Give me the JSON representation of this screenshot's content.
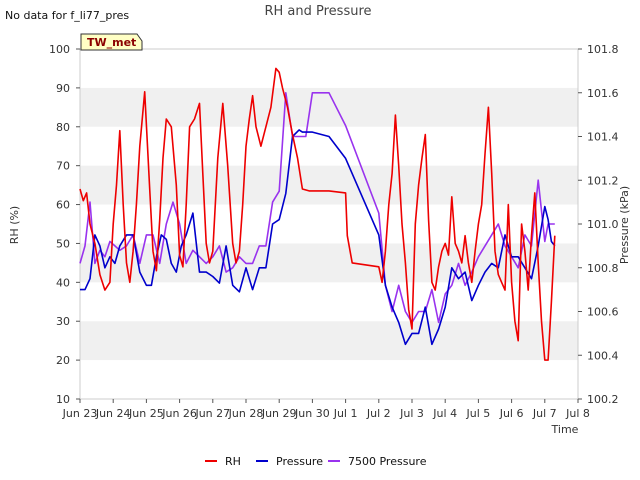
{
  "chart_data": {
    "type": "line",
    "title": "RH and Pressure",
    "note": "No data for f_li77_pres",
    "badge": "TW_met",
    "xlabel": "Time",
    "ylabel_left": "RH (%)",
    "ylabel_right": "Pressure (kPa)",
    "x_ticks": [
      "Jun 23",
      "Jun 24",
      "Jun 25",
      "Jun 26",
      "Jun 27",
      "Jun 28",
      "Jun 29",
      "Jun 30",
      "Jul 1",
      "Jul 2",
      "Jul 3",
      "Jul 4",
      "Jul 5",
      "Jul 6",
      "Jul 7",
      "Jul 8"
    ],
    "xlim": [
      0,
      15
    ],
    "ylim_left": [
      10,
      100
    ],
    "yticks_left": [
      "10",
      "20",
      "30",
      "40",
      "50",
      "60",
      "70",
      "80",
      "90",
      "100"
    ],
    "ylim_right": [
      100.2,
      101.8
    ],
    "yticks_right": [
      "100.2",
      "100.4",
      "100.6",
      "100.8",
      "101.0",
      "101.2",
      "101.4",
      "101.6",
      "101.8"
    ],
    "grid": "horizontal bands",
    "legend_position": "bottom",
    "colors": {
      "RH": "#ee0000",
      "Pressure": "#0000cc",
      "7500 Pressure": "#9933ee",
      "band": "#f0f0f0"
    },
    "series": [
      {
        "name": "RH",
        "axis": "left",
        "x": [
          0.0,
          0.1,
          0.2,
          0.3,
          0.45,
          0.6,
          0.75,
          0.9,
          1.0,
          1.1,
          1.2,
          1.3,
          1.4,
          1.5,
          1.6,
          1.7,
          1.8,
          1.95,
          2.1,
          2.2,
          2.3,
          2.4,
          2.5,
          2.6,
          2.75,
          2.9,
          3.0,
          3.1,
          3.2,
          3.3,
          3.45,
          3.6,
          3.7,
          3.8,
          3.9,
          4.0,
          4.15,
          4.3,
          4.45,
          4.6,
          4.7,
          4.8,
          4.9,
          5.0,
          5.1,
          5.2,
          5.3,
          5.45,
          5.6,
          5.75,
          5.9,
          6.0,
          6.1,
          6.25,
          6.4,
          6.55,
          6.7,
          6.9,
          7.0,
          7.5,
          8.0,
          8.05,
          8.2,
          9.0,
          9.1,
          9.2,
          9.3,
          9.4,
          9.5,
          9.6,
          9.7,
          9.8,
          9.9,
          10.0,
          10.1,
          10.2,
          10.3,
          10.4,
          10.5,
          10.6,
          10.7,
          10.8,
          10.9,
          11.0,
          11.1,
          11.2,
          11.3,
          11.4,
          11.5,
          11.6,
          11.7,
          11.8,
          11.9,
          12.0,
          12.1,
          12.2,
          12.3,
          12.4,
          12.5,
          12.6,
          12.7,
          12.8,
          12.9,
          13.0,
          13.1,
          13.2,
          13.3,
          13.4,
          13.5,
          13.6,
          13.7,
          13.8,
          13.9,
          14.0,
          14.1,
          14.2,
          14.3
        ],
        "y": [
          64,
          61,
          63,
          55,
          50,
          42,
          38,
          40,
          55,
          65,
          79,
          60,
          45,
          40,
          48,
          60,
          75,
          89,
          64,
          48,
          43,
          56,
          72,
          82,
          80,
          65,
          47,
          44,
          60,
          80,
          82,
          86,
          68,
          50,
          45,
          48,
          72,
          86,
          70,
          50,
          45,
          48,
          60,
          75,
          82,
          88,
          80,
          75,
          80,
          85,
          95,
          94,
          90,
          85,
          78,
          72,
          64,
          63.5,
          63.5,
          63.5,
          63,
          52,
          45,
          44,
          40,
          48,
          60,
          68,
          83,
          70,
          55,
          45,
          33,
          28,
          55,
          65,
          72,
          78,
          56,
          40,
          38,
          44,
          48,
          50,
          47,
          62,
          50,
          48,
          45,
          52,
          45,
          40,
          48,
          55,
          60,
          73,
          85,
          68,
          48,
          42,
          40,
          38,
          60,
          40,
          30,
          25,
          55,
          48,
          38,
          52,
          63,
          45,
          30,
          20,
          20,
          35,
          52
        ]
      },
      {
        "name": "Pressure",
        "axis": "right",
        "x": [
          0.0,
          0.15,
          0.3,
          0.45,
          0.6,
          0.75,
          0.9,
          1.05,
          1.2,
          1.4,
          1.6,
          1.8,
          2.0,
          2.15,
          2.3,
          2.45,
          2.6,
          2.75,
          2.9,
          3.05,
          3.2,
          3.4,
          3.6,
          3.8,
          4.0,
          4.2,
          4.4,
          4.6,
          4.8,
          5.0,
          5.2,
          5.4,
          5.6,
          5.8,
          6.0,
          6.2,
          6.4,
          6.6,
          6.7,
          6.85,
          7.0,
          7.5,
          8.0,
          9.0,
          9.2,
          9.4,
          9.6,
          9.8,
          10.0,
          10.2,
          10.4,
          10.6,
          10.8,
          11.0,
          11.2,
          11.4,
          11.6,
          11.8,
          12.0,
          12.2,
          12.4,
          12.6,
          12.8,
          13.0,
          13.2,
          13.4,
          13.6,
          13.8,
          14.0,
          14.1,
          14.2,
          14.3
        ],
        "y": [
          100.7,
          100.7,
          100.75,
          100.95,
          100.9,
          100.8,
          100.85,
          100.82,
          100.9,
          100.95,
          100.95,
          100.78,
          100.72,
          100.72,
          100.85,
          100.95,
          100.93,
          100.82,
          100.78,
          100.9,
          100.95,
          101.05,
          100.78,
          100.78,
          100.76,
          100.73,
          100.9,
          100.72,
          100.69,
          100.8,
          100.7,
          100.8,
          100.8,
          101.0,
          101.02,
          101.14,
          101.4,
          101.43,
          101.42,
          101.42,
          101.42,
          101.4,
          101.3,
          100.95,
          100.72,
          100.62,
          100.55,
          100.45,
          100.5,
          100.5,
          100.62,
          100.45,
          100.52,
          100.62,
          100.8,
          100.75,
          100.78,
          100.65,
          100.72,
          100.78,
          100.82,
          100.8,
          100.95,
          100.85,
          100.85,
          100.8,
          100.75,
          100.9,
          101.08,
          101.02,
          100.92,
          100.9
        ]
      },
      {
        "name": "7500 Pressure",
        "axis": "right",
        "x": [
          0.0,
          0.15,
          0.3,
          0.45,
          0.6,
          0.75,
          0.9,
          1.05,
          1.2,
          1.4,
          1.6,
          1.8,
          2.0,
          2.2,
          2.4,
          2.6,
          2.8,
          3.0,
          3.2,
          3.4,
          3.6,
          3.8,
          4.0,
          4.2,
          4.4,
          4.6,
          4.8,
          5.0,
          5.2,
          5.4,
          5.6,
          5.8,
          6.0,
          6.2,
          6.4,
          6.6,
          6.8,
          7.0,
          7.5,
          8.0,
          9.0,
          9.2,
          9.4,
          9.6,
          9.8,
          10.0,
          10.2,
          10.4,
          10.6,
          10.8,
          11.0,
          11.2,
          11.4,
          11.6,
          11.8,
          12.0,
          12.2,
          12.4,
          12.6,
          12.8,
          13.0,
          13.2,
          13.4,
          13.6,
          13.8,
          14.0,
          14.1,
          14.2,
          14.3
        ],
        "y": [
          100.82,
          100.9,
          101.1,
          100.82,
          100.88,
          100.85,
          100.92,
          100.9,
          100.88,
          100.9,
          100.95,
          100.82,
          100.95,
          100.95,
          100.82,
          101.0,
          101.1,
          101.0,
          100.82,
          100.88,
          100.85,
          100.82,
          100.85,
          100.9,
          100.78,
          100.8,
          100.85,
          100.82,
          100.82,
          100.9,
          100.9,
          101.1,
          101.15,
          101.6,
          101.4,
          101.4,
          101.4,
          101.6,
          101.6,
          101.45,
          101.05,
          100.72,
          100.6,
          100.72,
          100.6,
          100.55,
          100.6,
          100.6,
          100.7,
          100.55,
          100.68,
          100.72,
          100.82,
          100.72,
          100.78,
          100.85,
          100.9,
          100.95,
          101.0,
          100.9,
          100.85,
          100.8,
          100.95,
          100.9,
          101.2,
          100.92,
          101.0,
          101.0,
          101.0
        ]
      }
    ]
  }
}
